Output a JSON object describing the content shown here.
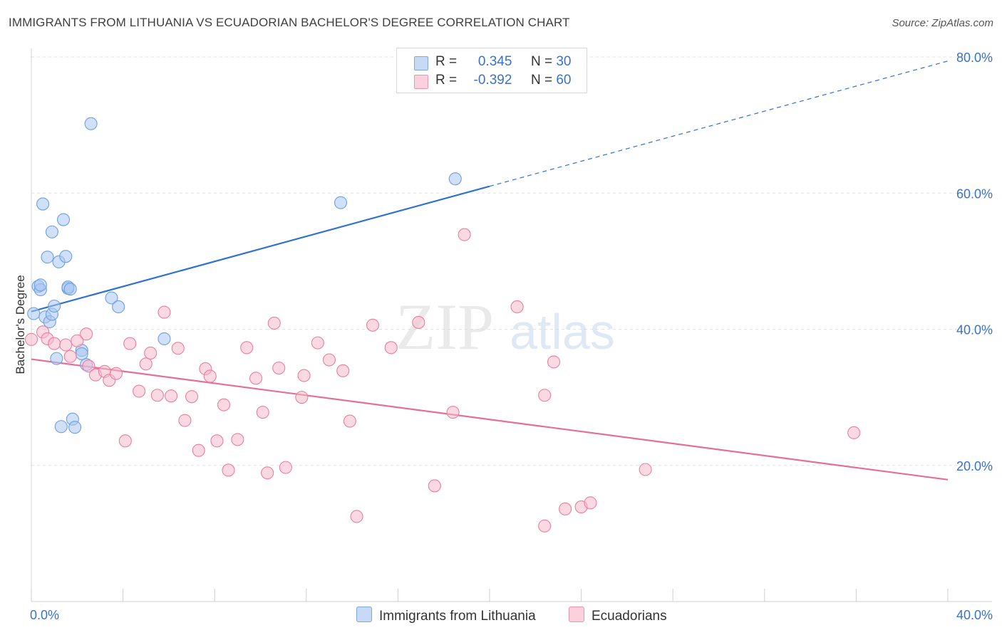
{
  "header": {
    "title": "IMMIGRANTS FROM LITHUANIA VS ECUADORIAN BACHELOR'S DEGREE CORRELATION CHART",
    "source": "Source: ZipAtlas.com"
  },
  "stats": {
    "rows": [
      {
        "r_label": "R =",
        "r_value": "0.345",
        "n_label": "N =",
        "n_value": "30",
        "color": "#a9c7f2"
      },
      {
        "r_label": "R =",
        "r_value": "-0.392",
        "n_label": "N =",
        "n_value": "60",
        "color": "#f7b9cc"
      }
    ]
  },
  "legend": {
    "items": [
      {
        "label": "Immigrants from Lithuania",
        "color": "#a9c7f2"
      },
      {
        "label": "Ecuadorians",
        "color": "#f7b9cc"
      }
    ]
  },
  "watermark": {
    "zip": "ZIP",
    "atlas": "atlas"
  },
  "chart_data": {
    "type": "scatter",
    "title": "IMMIGRANTS FROM LITHUANIA VS ECUADORIAN BACHELOR'S DEGREE CORRELATION CHART",
    "xlabel": "",
    "ylabel": "Bachelor's Degree",
    "xlim": [
      0,
      40
    ],
    "ylim": [
      0,
      80
    ],
    "x_tick_labels": [
      {
        "value": 0,
        "label": "0.0%"
      },
      {
        "value": 40,
        "label": "40.0%"
      }
    ],
    "y_tick_labels": [
      {
        "value": 20,
        "label": "20.0%"
      },
      {
        "value": 40,
        "label": "40.0%"
      },
      {
        "value": 60,
        "label": "60.0%"
      },
      {
        "value": 80,
        "label": "80.0%"
      }
    ],
    "grid": "horizontal dashed",
    "legend_position": "bottom-center",
    "series": [
      {
        "name": "Immigrants from Lithuania",
        "color": "#6f9fe0",
        "fill": "#a9c7f2",
        "points": [
          [
            0.1,
            42.3
          ],
          [
            0.3,
            46.3
          ],
          [
            0.4,
            45.8
          ],
          [
            0.5,
            58.4
          ],
          [
            0.6,
            41.8
          ],
          [
            0.7,
            50.6
          ],
          [
            0.8,
            41.1
          ],
          [
            0.9,
            54.3
          ],
          [
            0.9,
            42.2
          ],
          [
            1.0,
            43.4
          ],
          [
            1.1,
            35.7
          ],
          [
            1.2,
            49.9
          ],
          [
            1.4,
            56.1
          ],
          [
            1.5,
            50.7
          ],
          [
            1.6,
            46.0
          ],
          [
            1.6,
            46.2
          ],
          [
            1.7,
            45.9
          ],
          [
            1.8,
            26.8
          ],
          [
            1.9,
            25.6
          ],
          [
            1.3,
            25.7
          ],
          [
            2.2,
            36.9
          ],
          [
            2.2,
            36.4
          ],
          [
            2.4,
            34.8
          ],
          [
            2.6,
            70.2
          ],
          [
            3.5,
            44.6
          ],
          [
            3.8,
            43.3
          ],
          [
            5.8,
            38.6
          ],
          [
            13.5,
            58.6
          ],
          [
            18.5,
            62.1
          ],
          [
            0.4,
            46.5
          ]
        ],
        "trend": {
          "x0": 0,
          "y0": 42.6,
          "x1": 20,
          "y1": 61.0,
          "dashed_to_x": 40,
          "dashed_to_y": 79.4
        }
      },
      {
        "name": "Ecuadorians",
        "color": "#e87fa0",
        "fill": "#f7b9cc",
        "points": [
          [
            0.0,
            38.5
          ],
          [
            0.5,
            39.6
          ],
          [
            0.7,
            38.6
          ],
          [
            1.0,
            37.9
          ],
          [
            1.5,
            37.7
          ],
          [
            1.7,
            36.0
          ],
          [
            2.0,
            38.3
          ],
          [
            2.4,
            39.3
          ],
          [
            2.5,
            34.6
          ],
          [
            2.8,
            33.3
          ],
          [
            3.2,
            33.8
          ],
          [
            3.4,
            32.5
          ],
          [
            3.7,
            33.5
          ],
          [
            4.1,
            23.6
          ],
          [
            4.3,
            37.9
          ],
          [
            4.7,
            30.9
          ],
          [
            5.0,
            34.9
          ],
          [
            5.2,
            36.5
          ],
          [
            5.5,
            30.3
          ],
          [
            5.8,
            42.5
          ],
          [
            6.1,
            30.2
          ],
          [
            6.4,
            37.2
          ],
          [
            6.7,
            26.6
          ],
          [
            7.0,
            30.1
          ],
          [
            7.3,
            22.2
          ],
          [
            7.6,
            34.2
          ],
          [
            7.8,
            33.1
          ],
          [
            8.1,
            23.6
          ],
          [
            8.4,
            28.9
          ],
          [
            8.6,
            19.3
          ],
          [
            9.0,
            23.8
          ],
          [
            9.4,
            37.3
          ],
          [
            9.8,
            32.8
          ],
          [
            10.1,
            27.8
          ],
          [
            10.3,
            18.9
          ],
          [
            10.6,
            40.9
          ],
          [
            10.8,
            34.3
          ],
          [
            11.1,
            19.7
          ],
          [
            11.8,
            30.0
          ],
          [
            11.9,
            33.2
          ],
          [
            12.5,
            38.0
          ],
          [
            13.0,
            35.5
          ],
          [
            13.6,
            33.9
          ],
          [
            13.9,
            26.5
          ],
          [
            14.2,
            12.5
          ],
          [
            14.9,
            40.6
          ],
          [
            15.7,
            37.3
          ],
          [
            16.9,
            41.0
          ],
          [
            17.6,
            17.0
          ],
          [
            18.4,
            27.8
          ],
          [
            18.9,
            53.9
          ],
          [
            21.2,
            43.3
          ],
          [
            22.4,
            30.3
          ],
          [
            22.4,
            11.1
          ],
          [
            22.8,
            35.2
          ],
          [
            23.3,
            13.6
          ],
          [
            24.0,
            13.9
          ],
          [
            24.4,
            14.5
          ],
          [
            26.8,
            19.4
          ],
          [
            35.9,
            24.8
          ]
        ],
        "trend": {
          "x0": 0,
          "y0": 35.6,
          "x1": 40,
          "y1": 17.9
        }
      }
    ]
  }
}
